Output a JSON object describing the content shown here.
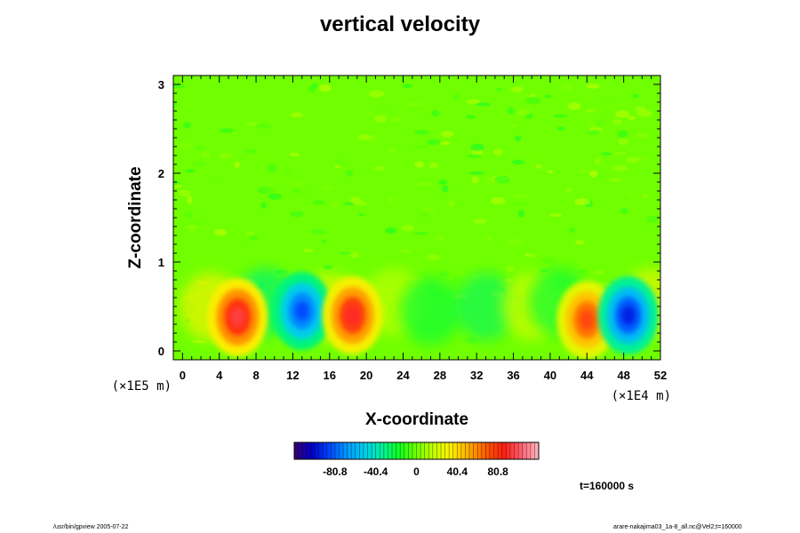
{
  "chart_data": {
    "type": "heatmap",
    "title": "vertical velocity",
    "xlabel": "X-coordinate",
    "ylabel": "Z-coordinate",
    "x_multiplier": "(×1E4 m)",
    "y_multiplier": "(×1E5 m)",
    "xlim": [
      -1,
      52
    ],
    "ylim": [
      -0.1,
      3.1
    ],
    "x_ticks": [
      "0",
      "4",
      "8",
      "12",
      "16",
      "20",
      "24",
      "28",
      "32",
      "36",
      "40",
      "44",
      "48",
      "52"
    ],
    "y_ticks": [
      "0",
      "1",
      "2",
      "3"
    ],
    "colorbar": {
      "range": [
        -121.2,
        121.2
      ],
      "tick_labels": [
        "-80.8",
        "-40.4",
        "0",
        "40.4",
        "80.8"
      ],
      "colors": [
        "#3a0070",
        "#0000c8",
        "#0044ff",
        "#0099ff",
        "#00ccee",
        "#00f0a0",
        "#10ff20",
        "#70ff00",
        "#c8ff00",
        "#ffee00",
        "#ffaa00",
        "#ff5a00",
        "#ff1e14",
        "#ff6070",
        "#ffb8c0"
      ]
    },
    "background_value": 0,
    "anomalies": [
      {
        "x": 6.0,
        "z": 0.38,
        "value": 95,
        "label": "updraft"
      },
      {
        "x": 13.0,
        "z": 0.45,
        "value": -85,
        "label": "downdraft"
      },
      {
        "x": 18.5,
        "z": 0.4,
        "value": 90,
        "label": "updraft"
      },
      {
        "x": 44.0,
        "z": 0.35,
        "value": 75,
        "label": "updraft"
      },
      {
        "x": 48.5,
        "z": 0.4,
        "value": -95,
        "label": "downdraft"
      }
    ]
  },
  "time_label": "t=160000 s",
  "footer_left": "/usr/bin/gpview 2005-07-22",
  "footer_right": "arare-nakajima03_1a-8_all.nc@Vel2;t=160000"
}
